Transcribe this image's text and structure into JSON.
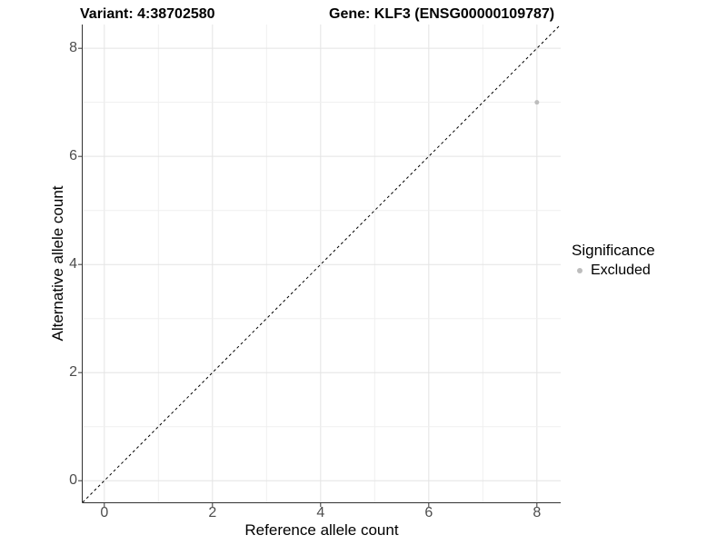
{
  "titles": {
    "left": "Variant: 4:38702580",
    "right": "Gene: KLF3 (ENSG00000109787)"
  },
  "axes": {
    "x_label": "Reference allele count",
    "y_label": "Alternative allele count"
  },
  "legend": {
    "title": "Significance",
    "items": [
      {
        "label": "Excluded",
        "color": "#bdbdbd"
      }
    ]
  },
  "chart_data": {
    "type": "scatter",
    "title": "Variant: 4:38702580 — Gene: KLF3 (ENSG00000109787)",
    "xlabel": "Reference allele count",
    "ylabel": "Alternative allele count",
    "points": [
      {
        "x": 8,
        "y": 7,
        "series": "Excluded",
        "color": "#bdbdbd",
        "radius": 2.5
      }
    ],
    "series": [
      {
        "name": "Excluded",
        "color": "#bdbdbd"
      }
    ],
    "x_ticks": [
      0,
      2,
      4,
      6,
      8
    ],
    "y_ticks": [
      0,
      2,
      4,
      6,
      8
    ],
    "x_grid": [
      0,
      1,
      2,
      3,
      4,
      5,
      6,
      7,
      8
    ],
    "y_grid": [
      0,
      1,
      2,
      3,
      4,
      5,
      6,
      7,
      8
    ],
    "xlim": [
      -0.4,
      8.44
    ],
    "ylim": [
      -0.4,
      8.44
    ],
    "grid": true,
    "legend_position": "right",
    "reference_line": {
      "type": "identity",
      "style": "dashed",
      "color": "#000000"
    },
    "colors": {
      "grid_major": "#e4e4e4",
      "grid_minor": "#efefef",
      "axis_line": "#333333",
      "tick_mark": "#333333",
      "tick_text": "#4d4d4d"
    }
  }
}
